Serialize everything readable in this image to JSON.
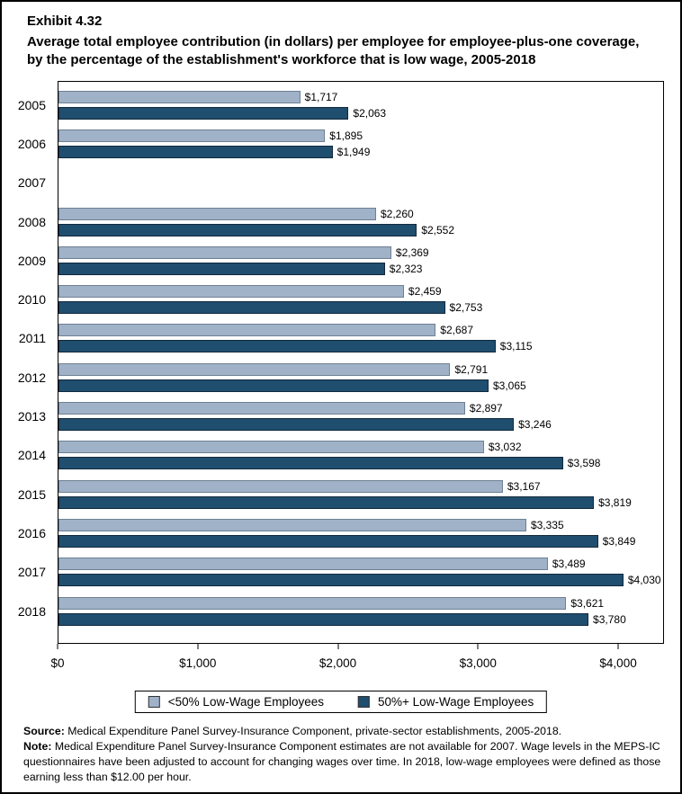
{
  "header": {
    "exhibit": "Exhibit 4.32",
    "title": "Average total employee contribution (in dollars) per employee for employee-plus-one coverage, by the percentage of the establishment's workforce that is low wage, 2005-2018"
  },
  "chart_data": {
    "type": "bar",
    "orientation": "horizontal",
    "title": "Average total employee contribution (in dollars) per employee for employee-plus-one coverage, by the percentage of the establishment's workforce that is low wage, 2005-2018",
    "categories": [
      2005,
      2006,
      2007,
      2008,
      2009,
      2010,
      2011,
      2012,
      2013,
      2014,
      2015,
      2016,
      2017,
      2018
    ],
    "series": [
      {
        "name": "<50% Low-Wage Employees",
        "color": "#9FB2C8",
        "border_color": "#6F8092",
        "values": [
          1717,
          1895,
          null,
          2260,
          2369,
          2459,
          2687,
          2791,
          2897,
          3032,
          3167,
          3335,
          3489,
          3621
        ]
      },
      {
        "name": "50%+ Low-Wage Employees",
        "color": "#1F4E6F",
        "border_color": "#12293C",
        "values": [
          2063,
          1949,
          null,
          2552,
          2323,
          2753,
          3115,
          3065,
          3246,
          3598,
          3819,
          3849,
          4030,
          3780
        ]
      }
    ],
    "value_prefix": "$",
    "xlabel": "",
    "ylabel": "",
    "xlim": [
      0,
      4327
    ],
    "x_ticks": [
      {
        "value": 0,
        "label": "$0"
      },
      {
        "value": 1000,
        "label": "$1,000"
      },
      {
        "value": 2000,
        "label": "$2,000"
      },
      {
        "value": 3000,
        "label": "$3,000"
      },
      {
        "value": 4000,
        "label": "$4,000"
      }
    ],
    "grid": false,
    "legend_position": "bottom",
    "missing_data_note": "2007 estimates not available"
  },
  "legend": {
    "items": [
      {
        "label": "<50% Low-Wage Employees",
        "color": "#9FB2C8",
        "border_color": "#6F8092"
      },
      {
        "label": "50%+ Low-Wage Employees",
        "color": "#1F4E6F",
        "border_color": "#12293C"
      }
    ]
  },
  "footer": {
    "source_label": "Source:",
    "source_text": " Medical Expenditure Panel Survey-Insurance Component, private-sector establishments, 2005-2018.",
    "note_label": "Note:",
    "note_text": " Medical Expenditure Panel Survey-Insurance Component estimates are not available for 2007. Wage levels in the MEPS-IC questionnaires have been adjusted to account for changing wages over time. In 2018, low-wage employees were defined as those earning less than $12.00 per hour."
  },
  "colors": {
    "axis": "#000000",
    "text": "#000000",
    "background": "#FFFFFF"
  }
}
